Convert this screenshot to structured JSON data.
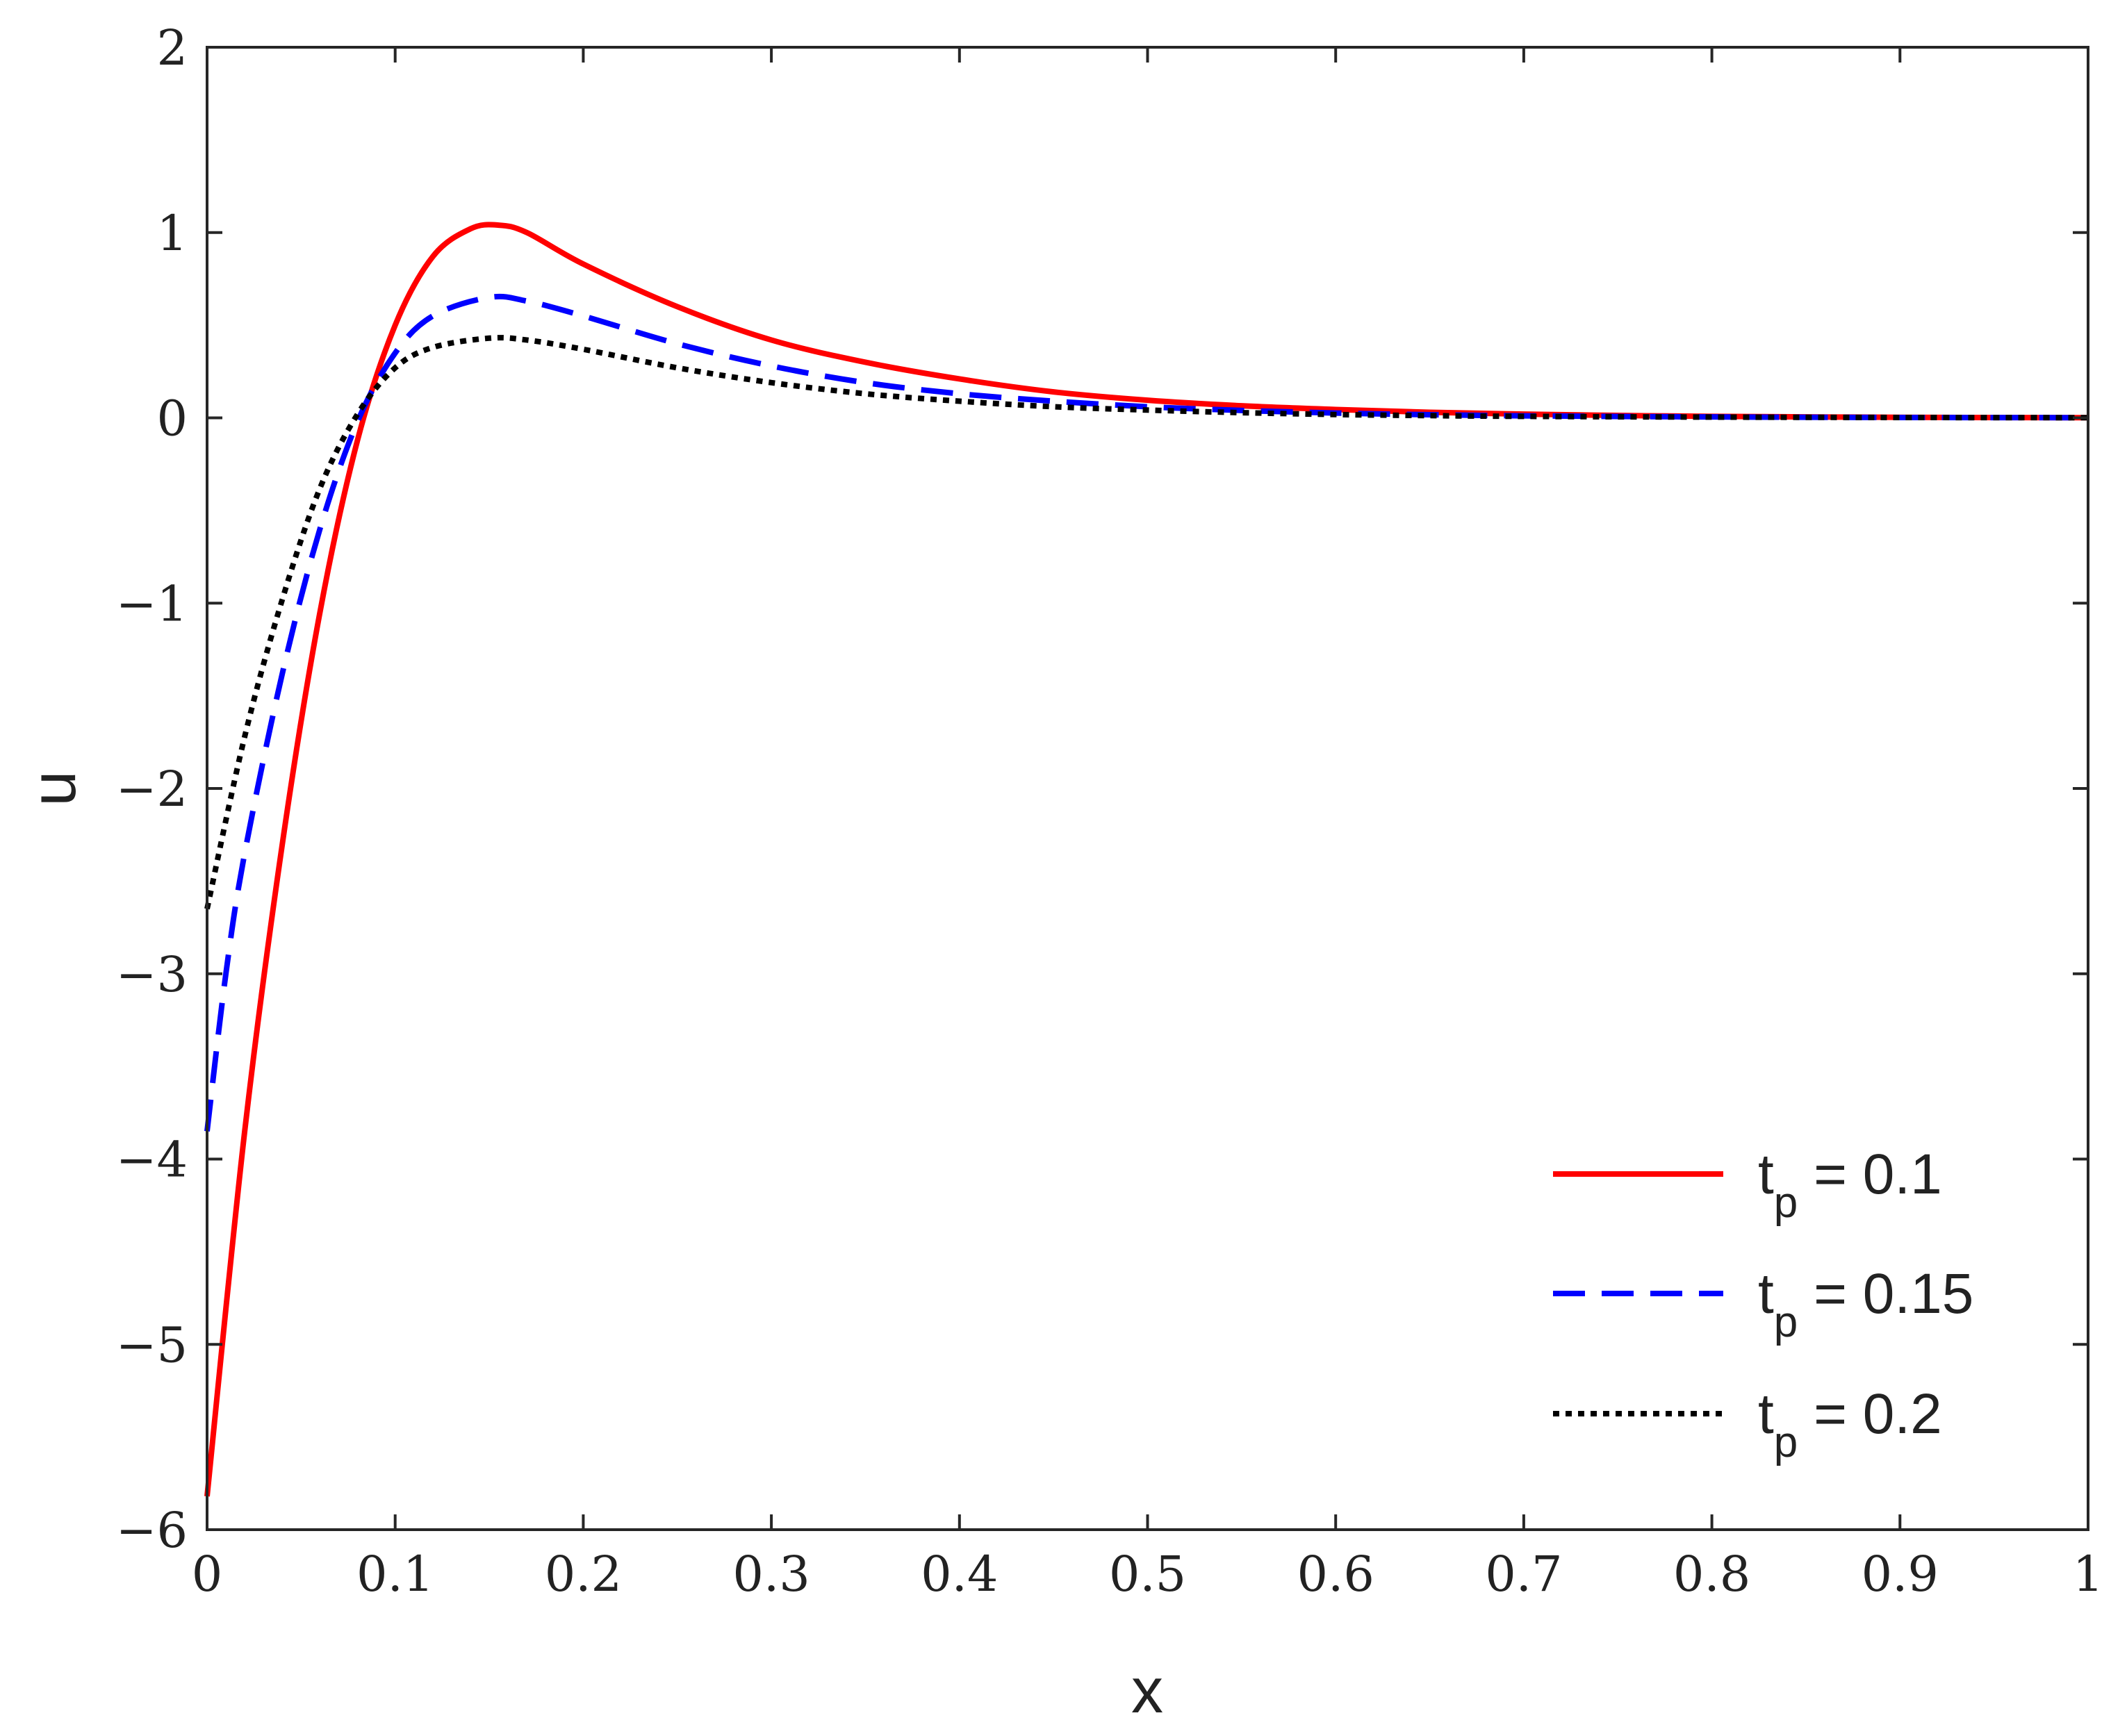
{
  "chart_data": {
    "type": "line",
    "title": "",
    "xlabel": "x",
    "ylabel": "u",
    "xlim": [
      0,
      1
    ],
    "ylim": [
      -6,
      2
    ],
    "xticks": [
      0,
      0.1,
      0.2,
      0.3,
      0.4,
      0.5,
      0.6,
      0.7,
      0.8,
      0.9,
      1
    ],
    "xtick_labels": [
      "0",
      "0.1",
      "0.2",
      "0.3",
      "0.4",
      "0.5",
      "0.6",
      "0.7",
      "0.8",
      "0.9",
      "1"
    ],
    "yticks": [
      -6,
      -5,
      -4,
      -3,
      -2,
      -1,
      0,
      1,
      2
    ],
    "ytick_labels": [
      "−6",
      "−5",
      "−4",
      "−3",
      "−2",
      "−1",
      "0",
      "1",
      "2"
    ],
    "grid": false,
    "legend_position": "bottom-right",
    "series": [
      {
        "legend_base": "t",
        "legend_sub": "p",
        "legend_value": " = 0.1",
        "color": "#ff0000",
        "dash": "solid",
        "x": [
          0,
          0.02,
          0.04,
          0.06,
          0.08,
          0.1,
          0.12,
          0.14,
          0.155,
          0.17,
          0.2,
          0.25,
          0.3,
          0.35,
          0.4,
          0.45,
          0.5,
          0.55,
          0.6,
          0.65,
          0.7,
          0.75,
          0.8,
          0.9,
          1
        ],
        "y": [
          -5.82,
          -3.85,
          -2.3,
          -1.05,
          -0.12,
          0.5,
          0.87,
          1.02,
          1.04,
          1.0,
          0.83,
          0.6,
          0.42,
          0.3,
          0.21,
          0.14,
          0.095,
          0.065,
          0.045,
          0.03,
          0.02,
          0.013,
          0.008,
          0.003,
          0.001
        ]
      },
      {
        "legend_base": "t",
        "legend_sub": "p",
        "legend_value": " = 0.15",
        "color": "#0000ff",
        "dash": "dashed",
        "x": [
          0,
          0.01,
          0.02,
          0.04,
          0.06,
          0.08,
          0.1,
          0.12,
          0.15,
          0.17,
          0.2,
          0.25,
          0.3,
          0.35,
          0.4,
          0.45,
          0.5,
          0.55,
          0.6,
          0.65,
          0.7,
          0.8,
          0.9,
          1
        ],
        "y": [
          -3.85,
          -3.0,
          -2.35,
          -1.38,
          -0.6,
          -0.02,
          0.35,
          0.55,
          0.65,
          0.63,
          0.55,
          0.4,
          0.28,
          0.19,
          0.13,
          0.09,
          0.06,
          0.04,
          0.026,
          0.017,
          0.011,
          0.005,
          0.002,
          0.001
        ]
      },
      {
        "legend_base": "t",
        "legend_sub": "p",
        "legend_value": " = 0.2",
        "color": "#000000",
        "dash": "dotted",
        "x": [
          0,
          0.02,
          0.04,
          0.06,
          0.08,
          0.1,
          0.12,
          0.15,
          0.17,
          0.2,
          0.25,
          0.3,
          0.35,
          0.4,
          0.45,
          0.5,
          0.55,
          0.6,
          0.65,
          0.7,
          0.8,
          0.9,
          1
        ],
        "y": [
          -2.65,
          -1.72,
          -0.98,
          -0.38,
          0.02,
          0.27,
          0.38,
          0.43,
          0.42,
          0.37,
          0.27,
          0.19,
          0.13,
          0.09,
          0.06,
          0.042,
          0.028,
          0.018,
          0.012,
          0.008,
          0.004,
          0.002,
          0.001
        ]
      }
    ]
  }
}
